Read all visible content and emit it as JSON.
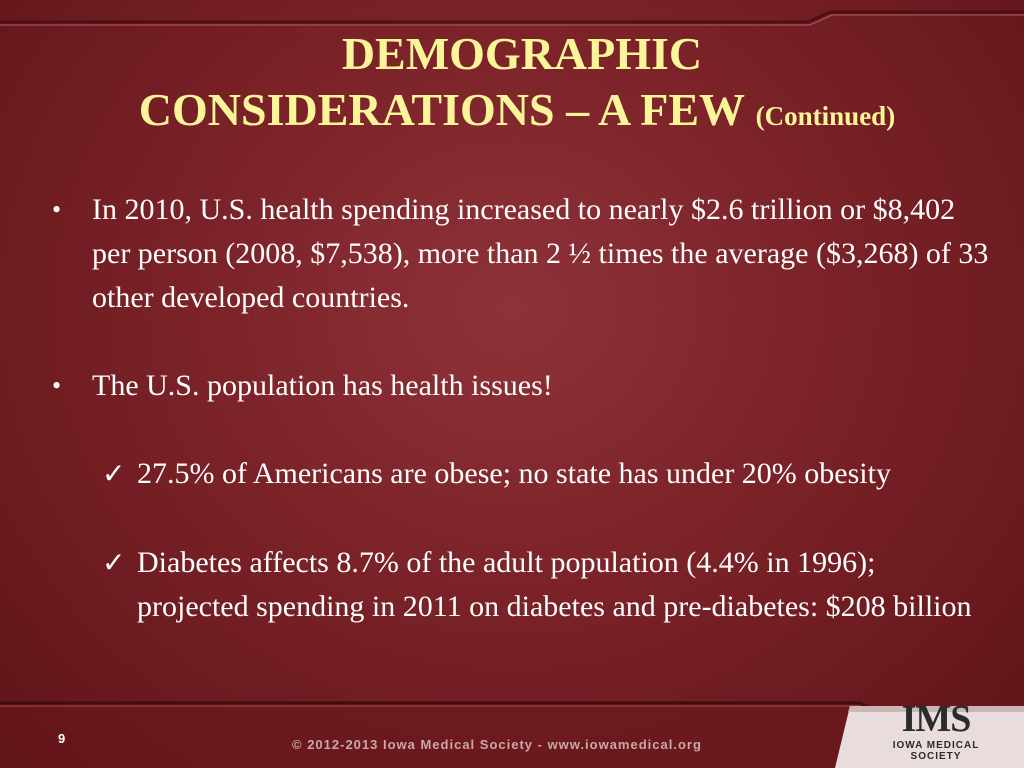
{
  "slide": {
    "title_line1": "DEMOGRAPHIC",
    "title_line2": "CONSIDERATIONS – A FEW",
    "title_suffix": "(Continued)",
    "bullets": [
      {
        "marker": "•",
        "text": "In 2010, U.S. health spending increased to nearly $2.6 trillion or $8,402 per person (2008, $7,538), more than 2 ½ times the average ($3,268) of 33 other developed countries."
      },
      {
        "marker": "•",
        "text": "The U.S. population has health issues!"
      }
    ],
    "sub_bullets": [
      {
        "marker": "✓",
        "text": "27.5% of Americans are obese; no state has under 20% obesity"
      },
      {
        "marker": "✓",
        "text": "Diabetes affects 8.7% of the adult population (4.4% in 1996); projected spending in 2011 on diabetes and pre-diabetes: $208 billion"
      }
    ]
  },
  "footer": {
    "page_number": "9",
    "copyright": "© 2012-2013 Iowa Medical Society - www.iowamedical.org",
    "logo_mark": "IMS",
    "logo_name": "IOWA MEDICAL SOCIETY"
  },
  "colors": {
    "background": "#7a2228",
    "title": "#fbf59a",
    "body_text": "#ffffff"
  }
}
